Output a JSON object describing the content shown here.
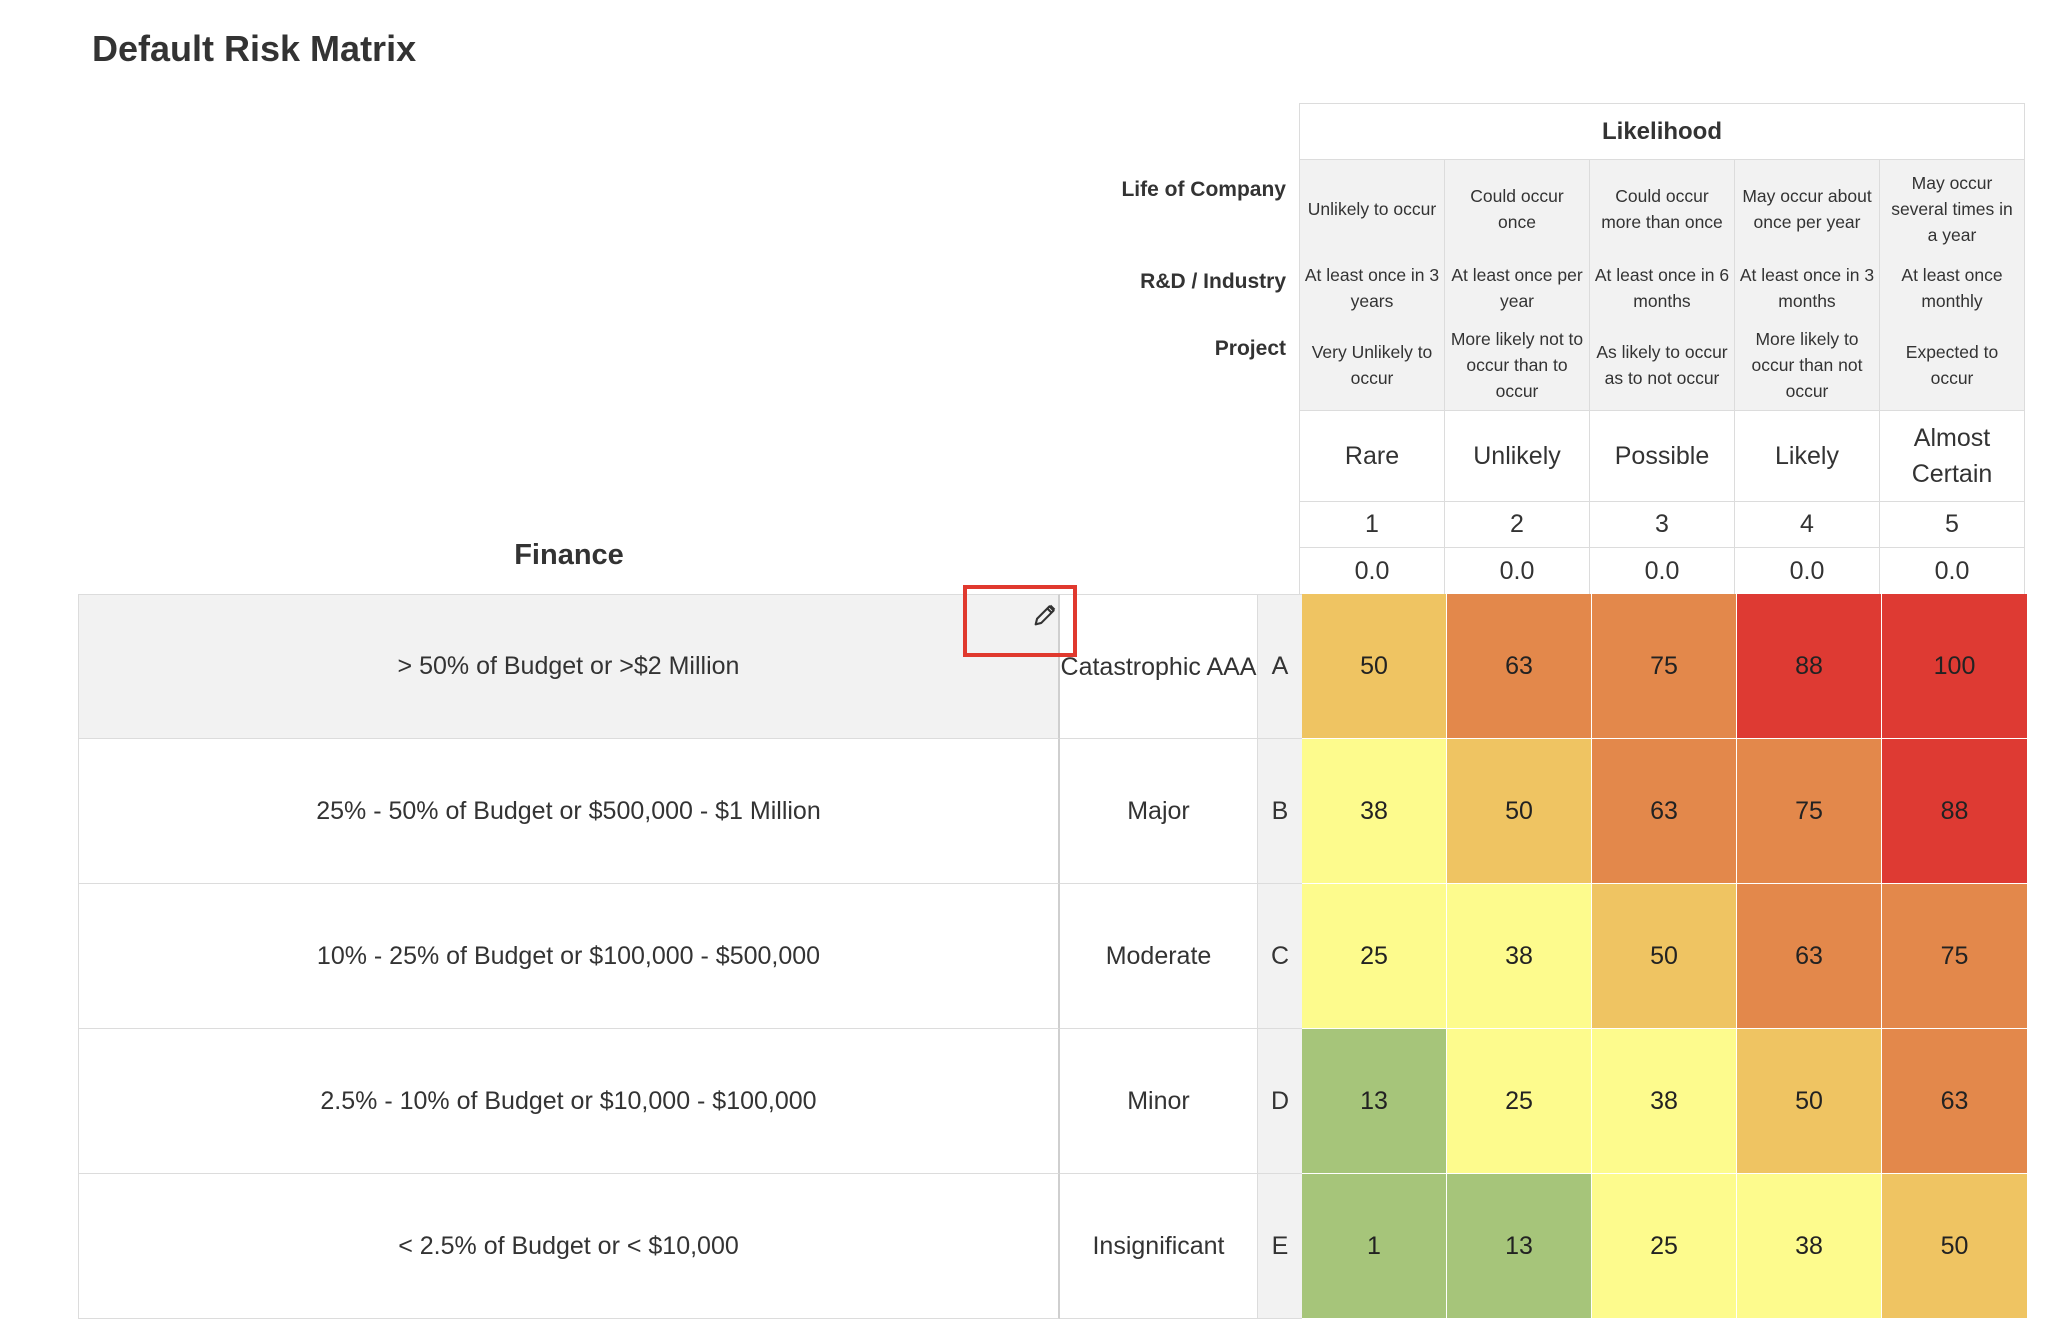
{
  "page": {
    "title": "Default Risk Matrix"
  },
  "likelihood": {
    "header": "Likelihood",
    "category_labels": [
      "Life of Company",
      "R&D / Industry",
      "Project"
    ],
    "columns": [
      {
        "life": "Unlikely to occur",
        "rd": "At least once in 3 years",
        "project": "Very Unlikely to occur",
        "name": "Rare",
        "level": "1",
        "value": "0.0"
      },
      {
        "life": "Could occur once",
        "rd": "At least once per year",
        "project": "More likely not to occur than to occur",
        "name": "Unlikely",
        "level": "2",
        "value": "0.0"
      },
      {
        "life": "Could occur more than once",
        "rd": "At least once in 6 months",
        "project": "As likely to occur as to not occur",
        "name": "Possible",
        "level": "3",
        "value": "0.0"
      },
      {
        "life": "May occur about once per year",
        "rd": "At least once in 3 months",
        "project": "More likely to occur than not occur",
        "name": "Likely",
        "level": "4",
        "value": "0.0"
      },
      {
        "life": "May occur several times in a year",
        "rd": "At least once monthly",
        "project": "Expected to occur",
        "name": "Almost Certain",
        "level": "5",
        "value": "0.0"
      }
    ]
  },
  "consequence": {
    "category": "Finance",
    "rows": [
      {
        "description": "> 50% of Budget or >$2 Million",
        "name": "Catastrophic AAA",
        "letter": "A",
        "scores": [
          "50",
          "63",
          "75",
          "88",
          "100"
        ],
        "colors": [
          "#efc462",
          "#e3884b",
          "#e3884b",
          "#de3a33",
          "#de3a33"
        ]
      },
      {
        "description": "25% - 50% of Budget or $500,000 - $1 Million",
        "name": "Major",
        "letter": "B",
        "scores": [
          "38",
          "50",
          "63",
          "75",
          "88"
        ],
        "colors": [
          "#fdfb8d",
          "#efc462",
          "#e3884b",
          "#e3884b",
          "#de3a33"
        ]
      },
      {
        "description": "10% - 25% of Budget or $100,000 - $500,000",
        "name": "Moderate",
        "letter": "C",
        "scores": [
          "25",
          "38",
          "50",
          "63",
          "75"
        ],
        "colors": [
          "#fdfb8d",
          "#fdfb8d",
          "#efc462",
          "#e3884b",
          "#e3884b"
        ]
      },
      {
        "description": "2.5% - 10% of Budget or $10,000 - $100,000",
        "name": "Minor",
        "letter": "D",
        "scores": [
          "13",
          "25",
          "38",
          "50",
          "63"
        ],
        "colors": [
          "#a6c57a",
          "#fdfb8d",
          "#fdfb8d",
          "#efc462",
          "#e3884b"
        ]
      },
      {
        "description": "< 2.5% of Budget or < $10,000",
        "name": "Insignificant",
        "letter": "E",
        "scores": [
          "1",
          "13",
          "25",
          "38",
          "50"
        ],
        "colors": [
          "#a6c57a",
          "#a6c57a",
          "#fdfb8d",
          "#fdfb8d",
          "#efc462"
        ]
      }
    ]
  },
  "icons": {
    "edit": "pencil-icon"
  },
  "colors": {
    "highlight_border": "#e0392e"
  }
}
